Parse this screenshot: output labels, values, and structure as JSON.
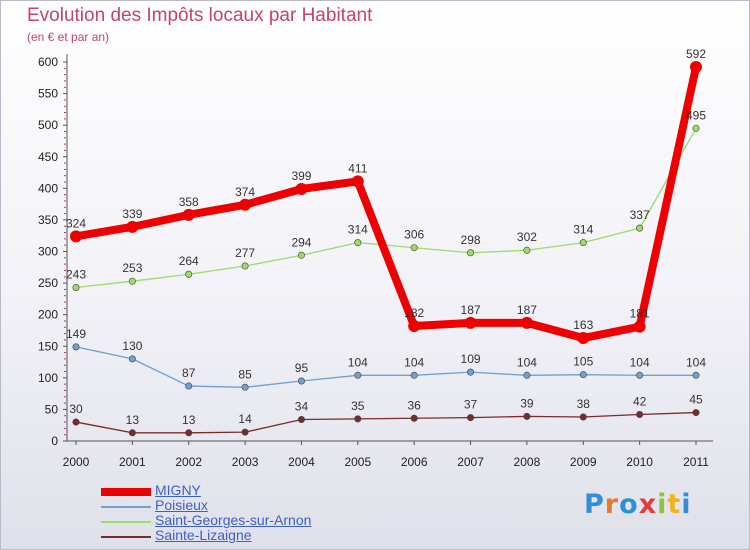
{
  "header": {
    "title": "Evolution des Impôts locaux par Habitant",
    "subtitle": "(en € et par an)"
  },
  "logo": {
    "text": "Proxiti",
    "colors": [
      "#2f8fd8",
      "#e8792b",
      "#2f8fd8",
      "#e23d3d",
      "#8cc63f",
      "#f2b21b",
      "#2f8fd8"
    ]
  },
  "chart_data": {
    "type": "line",
    "title": "Evolution des Impôts locaux par Habitant",
    "subtitle": "(en € et par an)",
    "x": [
      2000,
      2001,
      2002,
      2003,
      2004,
      2005,
      2006,
      2007,
      2008,
      2009,
      2010,
      2011
    ],
    "x_tick_labels": [
      "2000",
      "2001",
      "2002",
      "2003",
      "2004",
      "2005",
      "2006",
      "2007",
      "2008",
      "2009",
      "2010",
      "2011"
    ],
    "ylim": [
      0,
      600
    ],
    "y_ticks": [
      0,
      50,
      100,
      150,
      200,
      250,
      300,
      350,
      400,
      450,
      500,
      550,
      600
    ],
    "grid": false,
    "legend_position": "bottom-left",
    "series": [
      {
        "name": "MIGNY",
        "color": "#ee0000",
        "values": [
          324,
          339,
          358,
          374,
          399,
          411,
          182,
          187,
          187,
          163,
          181,
          592
        ]
      },
      {
        "name": "Poisieux",
        "color": "#6fa0d0",
        "values": [
          149,
          130,
          87,
          85,
          95,
          104,
          104,
          109,
          104,
          105,
          104,
          104
        ]
      },
      {
        "name": "Saint-Georges-sur-Arnon",
        "color": "#99dd66",
        "values": [
          243,
          253,
          264,
          277,
          294,
          314,
          306,
          298,
          302,
          314,
          337,
          495
        ]
      },
      {
        "name": "Sainte-Lizaigne",
        "color": "#7a2a2a",
        "values": [
          30,
          13,
          13,
          14,
          34,
          35,
          36,
          37,
          39,
          38,
          42,
          45
        ]
      }
    ]
  }
}
